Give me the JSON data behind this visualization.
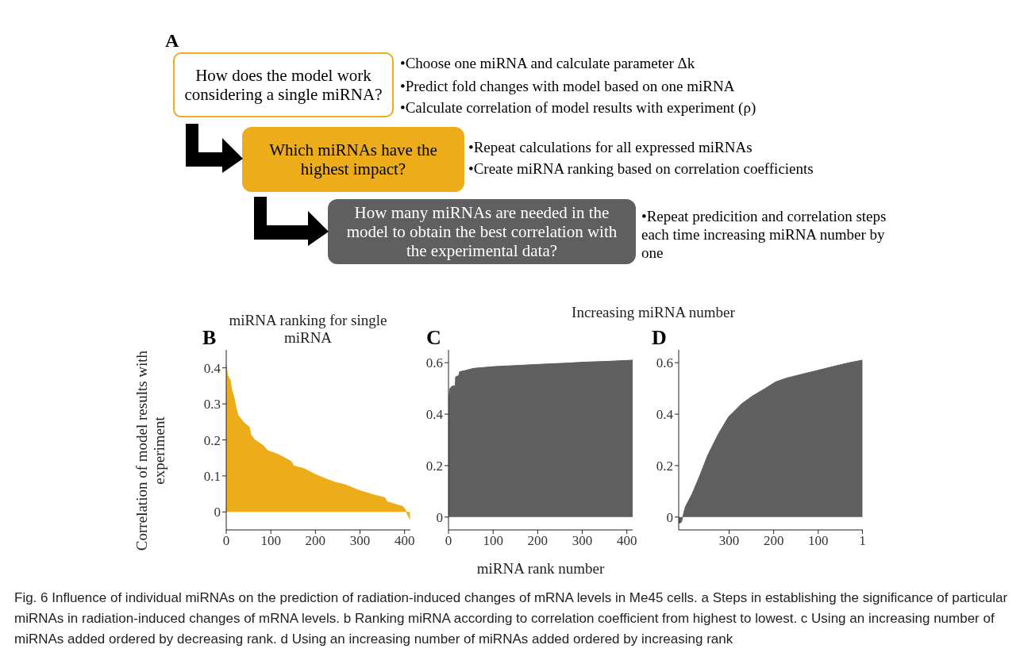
{
  "chart_data": [
    {
      "type": "other",
      "annotations": [
        "A",
        "How does the model work considering a single miRNA?",
        "Which miRNAs have the highest impact?",
        "How many miRNAs are needed in the model to obtain the best correlation with the experimental data?",
        "•Choose one miRNA and calculate parameter Δk",
        "•Predict fold changes with model based on one miRNA",
        "•Calculate correlation of model results with experiment (ρ)",
        "•Repeat calculations for all expressed miRNAs",
        "•Create miRNA ranking based on correlation coefficients",
        "•Repeat predicition and correlation steps each time increasing miRNA number by one",
        "Fig. 6 Influence of individual miRNAs on the prediction of radiation-induced changes of mRNA levels in Me45 cells. a Steps in establishing the significance of particular miRNAs in radiation-induced changes of mRNA levels. b Ranking miRNA according to correlation coefficient from highest to lowest. c Using an increasing number of miRNAs added ordered by decreasing rank. d Using an increasing number of miRNAs added ordered by increasing rank"
      ]
    },
    {
      "type": "area",
      "title": "miRNA ranking for single miRNA",
      "ylabel": "Correlation of model results with experiment",
      "annotations": [
        "B"
      ],
      "color": "#edac1a",
      "x": [
        0,
        3,
        9,
        12,
        17,
        22,
        26,
        38,
        52,
        55,
        64,
        82,
        93,
        116,
        146,
        151,
        175,
        198,
        227,
        245,
        268,
        297,
        332,
        355,
        361,
        396,
        402,
        408,
        412
      ],
      "values": [
        0.41,
        0.38,
        0.365,
        0.34,
        0.32,
        0.29,
        0.27,
        0.25,
        0.235,
        0.215,
        0.2,
        0.185,
        0.17,
        0.16,
        0.14,
        0.128,
        0.12,
        0.105,
        0.09,
        0.082,
        0.075,
        0.06,
        0.047,
        0.04,
        0.028,
        0.015,
        0.005,
        -0.01,
        -0.02
      ],
      "xlim": [
        0,
        413
      ],
      "xticks": [
        0,
        100,
        200,
        300,
        400
      ],
      "ylim": [
        -0.05,
        0.45
      ],
      "yticks": [
        0,
        0.1,
        0.2,
        0.3,
        0.4
      ]
    },
    {
      "type": "area",
      "title": "Increasing miRNA number",
      "xlabel": "miRNA rank number",
      "annotations": [
        "C"
      ],
      "color": "#5f5f5f",
      "x": [
        0,
        1,
        3,
        9,
        15,
        16,
        23,
        25,
        38,
        56,
        102,
        161,
        219,
        260,
        301,
        365,
        413
      ],
      "values": [
        0.41,
        0.47,
        0.5,
        0.51,
        0.51,
        0.545,
        0.55,
        0.565,
        0.57,
        0.578,
        0.585,
        0.59,
        0.595,
        0.598,
        0.602,
        0.606,
        0.61
      ],
      "xlim": [
        0,
        413
      ],
      "xticks": [
        0,
        100,
        200,
        300,
        400
      ],
      "ylim": [
        -0.05,
        0.65
      ],
      "yticks": [
        0,
        0.2,
        0.4,
        0.6
      ]
    },
    {
      "type": "area",
      "annotations": [
        "D"
      ],
      "color": "#5f5f5f",
      "x": [
        413,
        407,
        404,
        398,
        383,
        366,
        348,
        325,
        301,
        289,
        272,
        248,
        219,
        196,
        172,
        137,
        102,
        67,
        31,
        1
      ],
      "values": [
        -0.025,
        -0.02,
        0,
        0.04,
        0.09,
        0.16,
        0.24,
        0.32,
        0.39,
        0.41,
        0.44,
        0.47,
        0.5,
        0.525,
        0.54,
        0.555,
        0.57,
        0.585,
        0.6,
        0.61
      ],
      "xlim": [
        413,
        0
      ],
      "xticks": [
        300,
        200,
        100,
        1
      ],
      "ylim": [
        -0.05,
        0.65
      ],
      "yticks": [
        0,
        0.2,
        0.4,
        0.6
      ]
    }
  ]
}
